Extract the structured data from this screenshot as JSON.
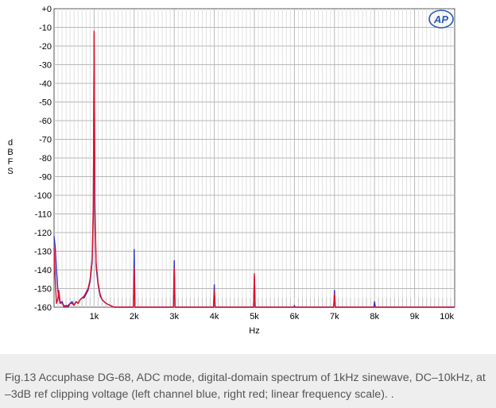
{
  "chart_data": {
    "type": "line",
    "title": "",
    "xlabel": "Hz",
    "ylabel": "dBFS",
    "xlim": [
      0,
      10000
    ],
    "ylim": [
      -160,
      0
    ],
    "x_ticks": [
      {
        "value": 1000,
        "label": "1k"
      },
      {
        "value": 2000,
        "label": "2k"
      },
      {
        "value": 3000,
        "label": "3k"
      },
      {
        "value": 4000,
        "label": "4k"
      },
      {
        "value": 5000,
        "label": "5k"
      },
      {
        "value": 6000,
        "label": "6k"
      },
      {
        "value": 7000,
        "label": "7k"
      },
      {
        "value": 8000,
        "label": "8k"
      },
      {
        "value": 9000,
        "label": "9k"
      },
      {
        "value": 10000,
        "label": "10k"
      }
    ],
    "y_ticks": [
      {
        "value": 0,
        "label": "+0"
      },
      {
        "value": -10,
        "label": "-10"
      },
      {
        "value": -20,
        "label": "-20"
      },
      {
        "value": -30,
        "label": "-30"
      },
      {
        "value": -40,
        "label": "-40"
      },
      {
        "value": -50,
        "label": "-50"
      },
      {
        "value": -60,
        "label": "-60"
      },
      {
        "value": -70,
        "label": "-70"
      },
      {
        "value": -80,
        "label": "-80"
      },
      {
        "value": -90,
        "label": "-90"
      },
      {
        "value": -100,
        "label": "-100"
      },
      {
        "value": -110,
        "label": "-110"
      },
      {
        "value": -120,
        "label": "-120"
      },
      {
        "value": -130,
        "label": "-130"
      },
      {
        "value": -140,
        "label": "-140"
      },
      {
        "value": -150,
        "label": "-150"
      },
      {
        "value": -160,
        "label": "-160"
      }
    ],
    "grid": true,
    "logo": "AP",
    "series": [
      {
        "name": "left channel",
        "color": "#3030c8",
        "points": [
          [
            0,
            -122
          ],
          [
            30,
            -128
          ],
          [
            60,
            -140
          ],
          [
            100,
            -152
          ],
          [
            150,
            -158
          ],
          [
            200,
            -157
          ],
          [
            250,
            -160
          ],
          [
            300,
            -159
          ],
          [
            350,
            -160
          ],
          [
            400,
            -158
          ],
          [
            450,
            -157
          ],
          [
            500,
            -159
          ],
          [
            550,
            -157
          ],
          [
            600,
            -158
          ],
          [
            650,
            -156
          ],
          [
            700,
            -155
          ],
          [
            750,
            -155
          ],
          [
            800,
            -153
          ],
          [
            850,
            -151
          ],
          [
            900,
            -146
          ],
          [
            950,
            -136
          ],
          [
            980,
            -110
          ],
          [
            1000,
            -13
          ],
          [
            1020,
            -110
          ],
          [
            1050,
            -138
          ],
          [
            1100,
            -148
          ],
          [
            1150,
            -154
          ],
          [
            1200,
            -156
          ],
          [
            1300,
            -158
          ],
          [
            1400,
            -159
          ],
          [
            1500,
            -160
          ],
          [
            1980,
            -160
          ],
          [
            2000,
            -129
          ],
          [
            2020,
            -160
          ],
          [
            2980,
            -160
          ],
          [
            3000,
            -135
          ],
          [
            3020,
            -160
          ],
          [
            3980,
            -160
          ],
          [
            4000,
            -148
          ],
          [
            4020,
            -160
          ],
          [
            4980,
            -160
          ],
          [
            5000,
            -143
          ],
          [
            5020,
            -160
          ],
          [
            5990,
            -160
          ],
          [
            6000,
            -159
          ],
          [
            6010,
            -160
          ],
          [
            6980,
            -160
          ],
          [
            7000,
            -151
          ],
          [
            7020,
            -160
          ],
          [
            7980,
            -160
          ],
          [
            8000,
            -157
          ],
          [
            8020,
            -160
          ],
          [
            10000,
            -160
          ]
        ]
      },
      {
        "name": "right channel",
        "color": "#e0102a",
        "points": [
          [
            0,
            -128
          ],
          [
            30,
            -145
          ],
          [
            60,
            -158
          ],
          [
            100,
            -155
          ],
          [
            120,
            -151
          ],
          [
            150,
            -157
          ],
          [
            200,
            -158
          ],
          [
            250,
            -159
          ],
          [
            300,
            -160
          ],
          [
            350,
            -159
          ],
          [
            400,
            -158
          ],
          [
            450,
            -158
          ],
          [
            500,
            -159
          ],
          [
            550,
            -157
          ],
          [
            600,
            -158
          ],
          [
            650,
            -156
          ],
          [
            700,
            -155
          ],
          [
            750,
            -154
          ],
          [
            800,
            -152
          ],
          [
            850,
            -150
          ],
          [
            900,
            -145
          ],
          [
            950,
            -134
          ],
          [
            980,
            -105
          ],
          [
            1000,
            -12
          ],
          [
            1020,
            -105
          ],
          [
            1050,
            -136
          ],
          [
            1100,
            -147
          ],
          [
            1150,
            -153
          ],
          [
            1200,
            -156
          ],
          [
            1300,
            -158
          ],
          [
            1400,
            -159
          ],
          [
            1500,
            -160
          ],
          [
            1980,
            -160
          ],
          [
            2000,
            -139
          ],
          [
            2020,
            -160
          ],
          [
            2980,
            -160
          ],
          [
            3000,
            -139
          ],
          [
            3020,
            -160
          ],
          [
            3980,
            -160
          ],
          [
            4000,
            -151
          ],
          [
            4020,
            -160
          ],
          [
            4980,
            -160
          ],
          [
            5000,
            -142
          ],
          [
            5020,
            -160
          ],
          [
            6980,
            -160
          ],
          [
            7000,
            -153
          ],
          [
            7020,
            -160
          ],
          [
            7980,
            -160
          ],
          [
            8000,
            -160
          ],
          [
            10000,
            -160
          ]
        ]
      }
    ]
  },
  "caption": "Fig.13 Accuphase DG-68, ADC mode, digital-domain spectrum of 1kHz sinewave, DC–10kHz, at –3dB ref clipping voltage (left channel blue, right red; linear frequency scale). ."
}
